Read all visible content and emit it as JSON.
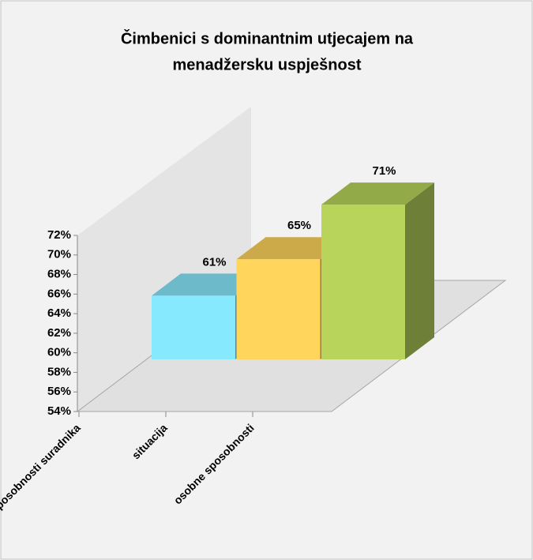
{
  "chart_data": {
    "type": "bar3d",
    "title": [
      "Čimbenici s dominantnim utjecajem na",
      "menadžersku uspješnost"
    ],
    "categories": [
      "sposobnosti suradnika",
      "situacija",
      "osobne sposobnosti"
    ],
    "values": [
      61,
      65,
      71
    ],
    "value_labels": [
      "61%",
      "65%",
      "71%"
    ],
    "colors": [
      "#87e9fd",
      "#ffd55c",
      "#b8d45b"
    ],
    "ylim": [
      54,
      72
    ],
    "yticks": [
      {
        "value": 54,
        "label": "54%"
      },
      {
        "value": 56,
        "label": "56%"
      },
      {
        "value": 58,
        "label": "58%"
      },
      {
        "value": 60,
        "label": "60%"
      },
      {
        "value": 62,
        "label": "62%"
      },
      {
        "value": 64,
        "label": "64%"
      },
      {
        "value": 66,
        "label": "66%"
      },
      {
        "value": 68,
        "label": "68%"
      },
      {
        "value": 70,
        "label": "70%"
      },
      {
        "value": 72,
        "label": "72%"
      }
    ],
    "grid": false
  }
}
